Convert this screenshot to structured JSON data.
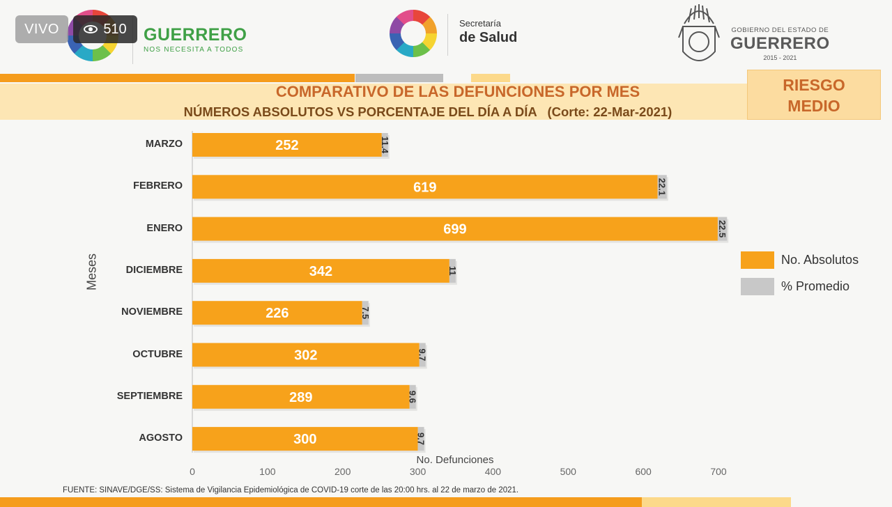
{
  "overlay": {
    "live": "VIVO",
    "viewers": "510"
  },
  "header": {
    "guerrero_name": "GUERRERO",
    "guerrero_tag": "NOS NECESITA A TODOS",
    "salud_l1": "Secretaría",
    "salud_l2": "de Salud",
    "gob_l1": "GOBIERNO DEL ESTADO DE",
    "gob_l2": "GUERRERO",
    "gob_l3": "2015 - 2021"
  },
  "title_line1": "COMPARATIVO DE LAS DEFUNCIONES POR MES",
  "title_line2": "NÚMEROS ABSOLUTOS VS PORCENTAJE DEL DÍA A DÍA   (Corte: 22-Mar-2021)",
  "risk": {
    "line1": "RIESGO",
    "line2": "MEDIO"
  },
  "colors": {
    "absolutos": "#f7a21b",
    "promedio": "#c8c8c8",
    "orange_strip": "#f59c1c",
    "gray_strip": "#bdbdbd",
    "pale_strip": "#fcd98a"
  },
  "chart_data": {
    "type": "bar",
    "orientation": "horizontal",
    "stacked": true,
    "categories": [
      "MARZO",
      "FEBRERO",
      "ENERO",
      "DICIEMBRE",
      "NOVIEMBRE",
      "OCTUBRE",
      "SEPTIEMBRE",
      "AGOSTO"
    ],
    "series": [
      {
        "name": "No. Absolutos",
        "values": [
          252,
          619,
          699,
          342,
          226,
          302,
          289,
          300
        ]
      },
      {
        "name": "% Promedio",
        "values": [
          11.4,
          22.1,
          22.5,
          11,
          7.5,
          9.7,
          9.6,
          9.7
        ]
      }
    ],
    "xlabel": "No. Defunciones",
    "ylabel": "Meses",
    "xlim": [
      0,
      700
    ],
    "xticks": [
      0,
      100,
      200,
      300,
      400,
      500,
      600,
      700
    ],
    "legend": "right",
    "grid": false
  },
  "source": "FUENTE: SINAVE/DGE/SS: Sistema de Vigilancia Epidemiológica de COVID-19 corte de las 20:00 hrs. al 22 de  marzo de 2021."
}
